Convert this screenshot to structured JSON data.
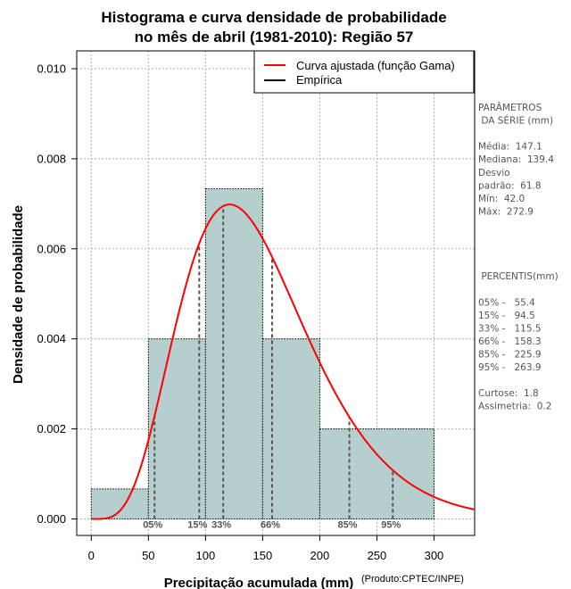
{
  "chart_data": {
    "type": "bar",
    "title": "Histograma e curva densidade de probabilidade",
    "subtitle": "no mês de abril (1981-2010): Região 57",
    "xlabel": "Precipitação acumulada (mm)",
    "ylabel": "Densidade de probabilidade",
    "xlim": [
      0,
      335
    ],
    "ylim": [
      0,
      0.0103
    ],
    "x_ticks": [
      "0",
      "50",
      "100",
      "150",
      "200",
      "250",
      "300"
    ],
    "y_ticks": [
      "0.000",
      "0.002",
      "0.004",
      "0.006",
      "0.008",
      "0.010"
    ],
    "grid": true,
    "legend_position": "top-right",
    "histogram": {
      "bins": [
        [
          0,
          50
        ],
        [
          50,
          100
        ],
        [
          100,
          150
        ],
        [
          150,
          200
        ],
        [
          200,
          300
        ]
      ],
      "density": [
        0.000667,
        0.004,
        0.007333,
        0.004,
        0.002
      ]
    },
    "series": [
      {
        "name": "Curva ajustada (função Gama)",
        "color": "#ff0000",
        "shape": 5.66,
        "scale": 25.99,
        "x_range": [
          0,
          335
        ]
      },
      {
        "name": "Empírica",
        "color": "#000000"
      }
    ],
    "percentiles": [
      {
        "label": "05%",
        "value": 55.4
      },
      {
        "label": "15%",
        "value": 94.5
      },
      {
        "label": "33%",
        "value": 115.5
      },
      {
        "label": "66%",
        "value": 158.3
      },
      {
        "label": "85%",
        "value": 225.9
      },
      {
        "label": "95%",
        "value": 263.9
      }
    ],
    "bar_color": "#b5cfcf",
    "credit": "(Produto:CPTEC/INPE)"
  },
  "side_panel": {
    "lines": [
      "PARÂMETROS",
      " DA SÉRIE (mm)",
      "",
      "Média:  147.1",
      "Mediana:  139.4",
      "Desvio",
      "padrão:  61.8",
      "Mín:  42.0",
      "Máx:  272.9",
      "",
      "",
      "",
      "",
      " PERCENTIS(mm)",
      "",
      "05% -   55.4",
      "15% -   94.5",
      "33% -   115.5",
      "66% -   158.3",
      "85% -   225.9",
      "95% -   263.9",
      "",
      "Curtose:  1.8",
      "Assimetria:  0.2"
    ]
  }
}
